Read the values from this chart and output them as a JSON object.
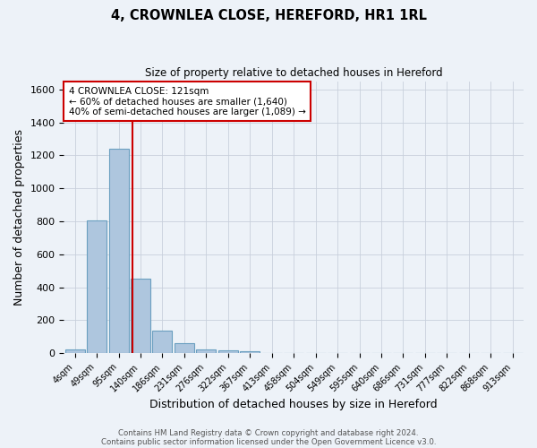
{
  "title": "4, CROWNLEA CLOSE, HEREFORD, HR1 1RL",
  "subtitle": "Size of property relative to detached houses in Hereford",
  "xlabel": "Distribution of detached houses by size in Hereford",
  "ylabel": "Number of detached properties",
  "footer_line1": "Contains HM Land Registry data © Crown copyright and database right 2024.",
  "footer_line2": "Contains public sector information licensed under the Open Government Licence v3.0.",
  "bin_labels": [
    "4sqm",
    "49sqm",
    "95sqm",
    "140sqm",
    "186sqm",
    "231sqm",
    "276sqm",
    "322sqm",
    "367sqm",
    "413sqm",
    "458sqm",
    "504sqm",
    "549sqm",
    "595sqm",
    "640sqm",
    "686sqm",
    "731sqm",
    "777sqm",
    "822sqm",
    "868sqm",
    "913sqm"
  ],
  "bar_heights": [
    25,
    805,
    1240,
    450,
    135,
    60,
    25,
    15,
    12,
    0,
    0,
    0,
    0,
    0,
    0,
    0,
    0,
    0,
    0,
    0,
    0
  ],
  "bar_color": "#aec6de",
  "bar_edge_color": "#6a9fc0",
  "grid_color": "#c8d0dc",
  "bg_color": "#edf2f8",
  "red_line_x": 2.62,
  "annotation_text": "4 CROWNLEA CLOSE: 121sqm\n← 60% of detached houses are smaller (1,640)\n40% of semi-detached houses are larger (1,089) →",
  "annotation_box_color": "#ffffff",
  "annotation_border_color": "#cc0000",
  "ylim": [
    0,
    1650
  ],
  "yticks": [
    0,
    200,
    400,
    600,
    800,
    1000,
    1200,
    1400,
    1600
  ]
}
